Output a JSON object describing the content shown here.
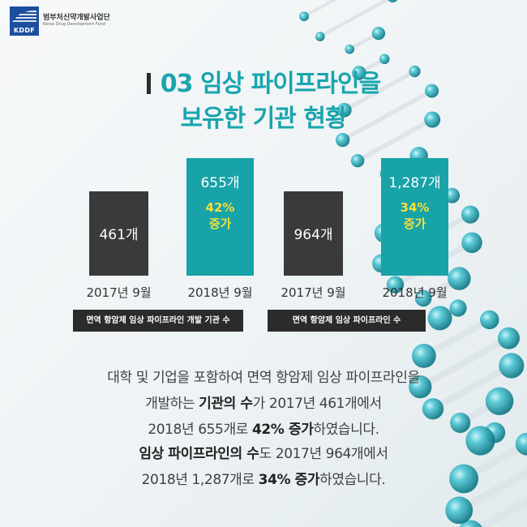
{
  "logo": {
    "abbr": "KDDF",
    "name": "범부처신약개발사업단",
    "sub": "Korea Drug Development Fund"
  },
  "title": {
    "line1": "03 임상 파이프라인을",
    "line2": "보유한 기관 현황"
  },
  "colors": {
    "accent": "#18a5ad",
    "bar_2017": "#3a3a3a",
    "bar_2018": "#17a3a8",
    "increase": "#f4df3c"
  },
  "chart_data": [
    {
      "type": "bar",
      "title": "면역 항암제 임상 파이프라인 개발 기관 수",
      "categories": [
        "2017년 9월",
        "2018년 9월"
      ],
      "values": [
        461,
        655
      ],
      "value_labels": [
        "461개",
        "655개"
      ],
      "increase_label": "42%",
      "increase_word": "증가"
    },
    {
      "type": "bar",
      "title": "면역 항암제 임상 파이프라인 수",
      "categories": [
        "2017년 9월",
        "2018년 9월"
      ],
      "values": [
        964,
        1287
      ],
      "value_labels": [
        "964개",
        "1,287개"
      ],
      "increase_label": "34%",
      "increase_word": "증가"
    }
  ],
  "paragraph1": {
    "line1": "대학 및 기업을 포함하여 면역 항암제 임상 파이프라인을",
    "line2_a": "개발하는 ",
    "line2_b": "기관의 수",
    "line2_c": "가 2017년 461개에서",
    "line3_a": "2018년 655개로 ",
    "line3_b": "42% 증가",
    "line3_c": "하였습니다."
  },
  "paragraph2": {
    "line1_a": "임상 파이프라인의 수",
    "line1_b": "도 2017년 964개에서",
    "line2_a": "2018년 1,287개로 ",
    "line2_b": "34% 증가",
    "line2_c": "하였습니다."
  }
}
